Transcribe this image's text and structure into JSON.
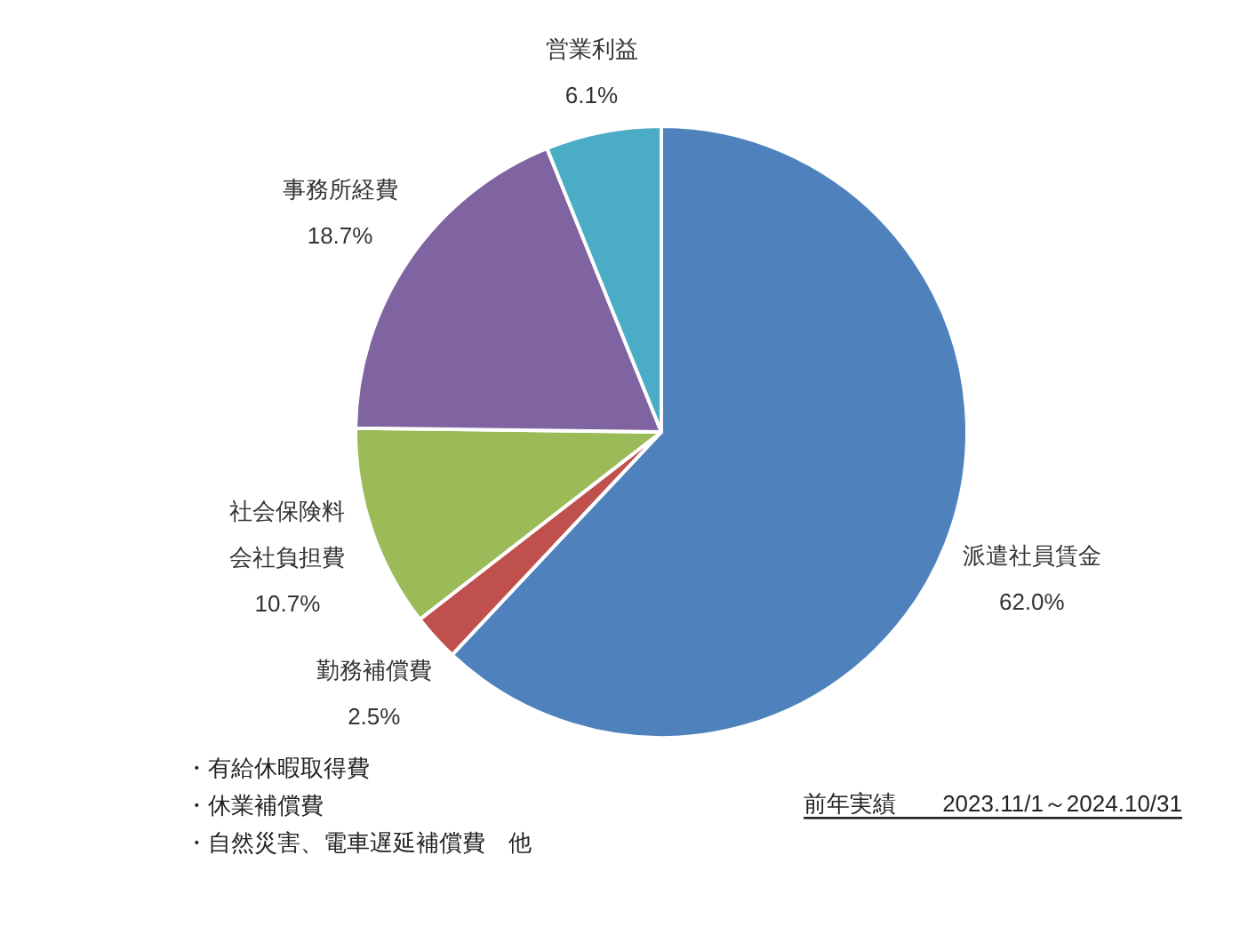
{
  "chart_data": {
    "type": "pie",
    "categories": [
      "派遣社員賃金",
      "勤務補償費",
      "社会保険料会社負担費",
      "事務所経費",
      "営業利益"
    ],
    "values": [
      62.0,
      2.5,
      10.7,
      18.7,
      6.1
    ],
    "colors": [
      "#4f81bd",
      "#c0504d",
      "#9bbb59",
      "#8064a2",
      "#4bacc6"
    ],
    "value_labels": [
      "62.0%",
      "2.5%",
      "10.7%",
      "18.7%",
      "6.1%"
    ],
    "annotations": [
      "・有給休暇取得費",
      "・休業補償費",
      "・自然災害、電車遅延補償費　他",
      "前年実績　　2023.11/1～2024.10/31"
    ]
  }
}
